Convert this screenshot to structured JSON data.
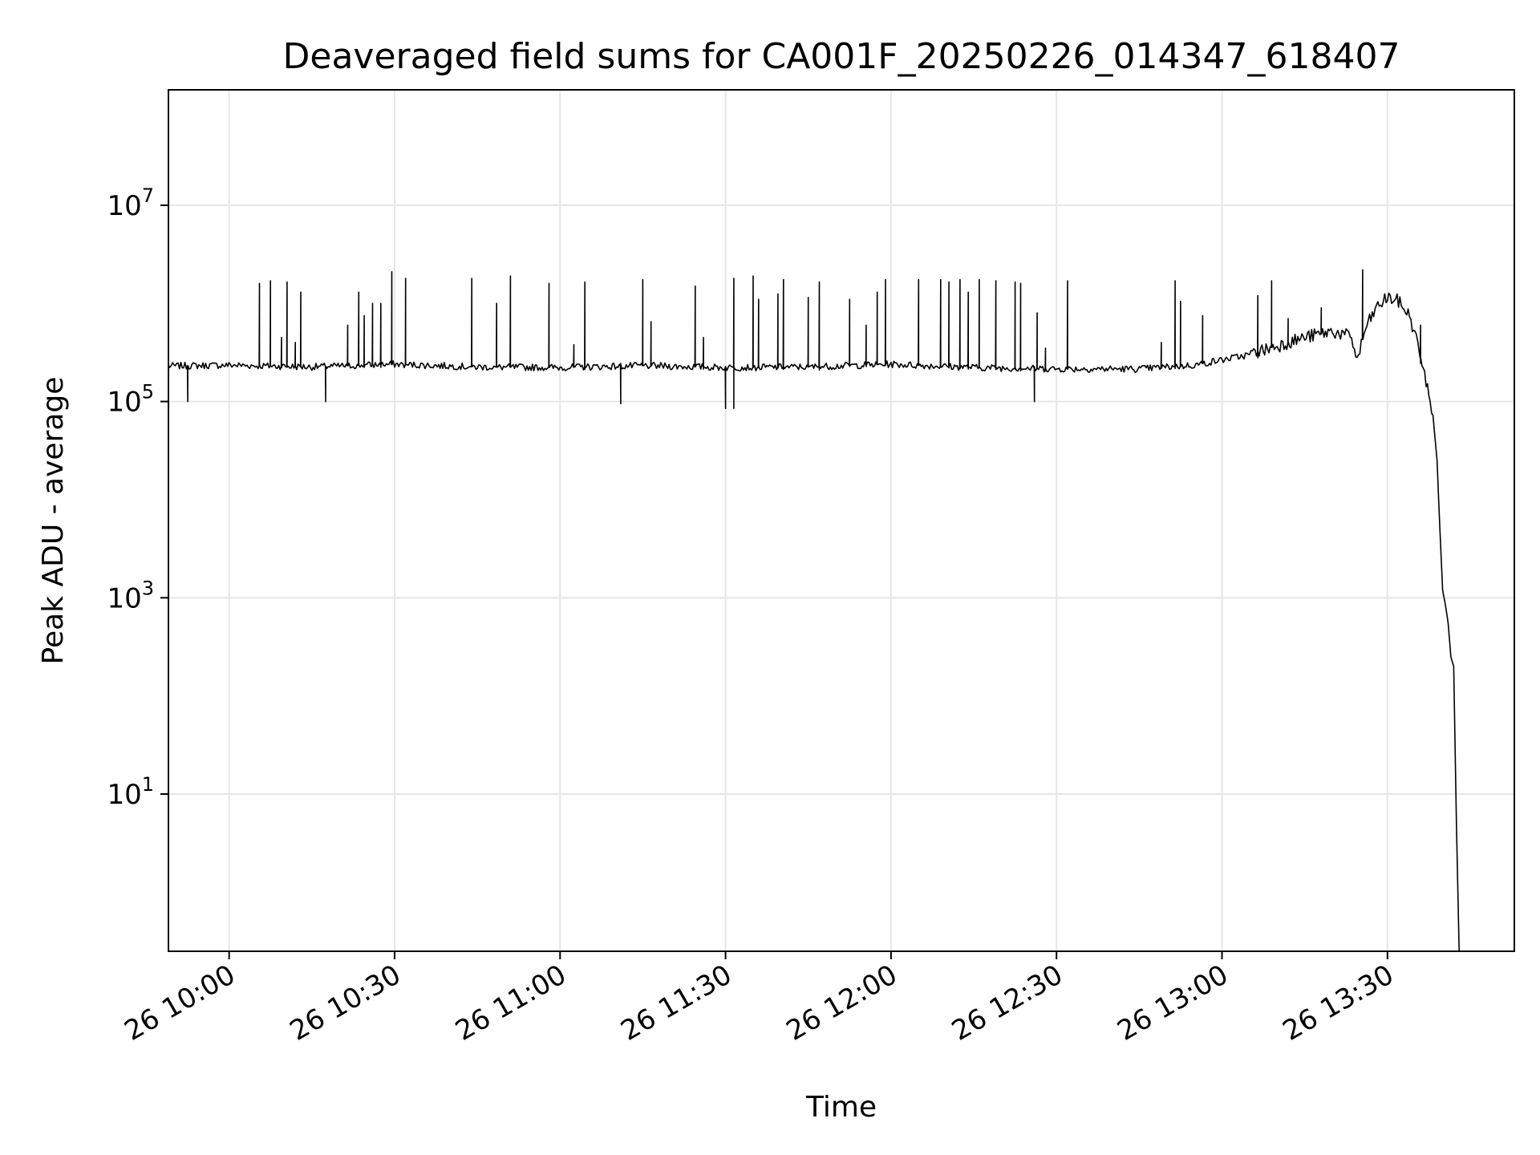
{
  "chart_data": {
    "type": "line",
    "title": "Deaveraged field sums for CA001F_20250226_014347_618407",
    "xlabel": "Time",
    "ylabel": "Peak ADU - average",
    "y_scale": "log",
    "grid": true,
    "line_color": "#000000",
    "grid_color": "#e6e6e6",
    "x_ticks": [
      "26 10:00",
      "26 10:30",
      "26 11:00",
      "26 11:30",
      "26 12:00",
      "26 12:30",
      "26 13:00",
      "26 13:30"
    ],
    "x_tick_times": [
      "2025-02-26 10:00",
      "2025-02-26 10:30",
      "2025-02-26 11:00",
      "2025-02-26 11:30",
      "2025-02-26 12:00",
      "2025-02-26 12:30",
      "2025-02-26 13:00",
      "2025-02-26 13:30"
    ],
    "y_ticks": [
      {
        "base": "10",
        "exp": "1",
        "value": 10
      },
      {
        "base": "10",
        "exp": "3",
        "value": 1000
      },
      {
        "base": "10",
        "exp": "5",
        "value": 100000
      },
      {
        "base": "10",
        "exp": "7",
        "value": 10000000
      }
    ],
    "xlim": [
      "2025-02-26 09:49",
      "2025-02-26 13:53"
    ],
    "ylim": [
      0.25,
      150000000
    ],
    "series": [
      {
        "baseline": [
          [
            "2025-02-26 09:49:00",
            230000
          ],
          [
            "2025-02-26 10:00:00",
            235000
          ],
          [
            "2025-02-26 10:15:00",
            225000
          ],
          [
            "2025-02-26 10:30:00",
            240000
          ],
          [
            "2025-02-26 10:45:00",
            225000
          ],
          [
            "2025-02-26 11:00:00",
            222000
          ],
          [
            "2025-02-26 11:15:00",
            232000
          ],
          [
            "2025-02-26 11:30:00",
            222000
          ],
          [
            "2025-02-26 11:45:00",
            225000
          ],
          [
            "2025-02-26 12:00:00",
            240000
          ],
          [
            "2025-02-26 12:15:00",
            222000
          ],
          [
            "2025-02-26 12:30:00",
            215000
          ],
          [
            "2025-02-26 12:45:00",
            215000
          ],
          [
            "2025-02-26 12:55:00",
            235000
          ],
          [
            "2025-02-26 13:05:00",
            300000
          ],
          [
            "2025-02-26 13:10:00",
            370000
          ],
          [
            "2025-02-26 13:15:00",
            450000
          ],
          [
            "2025-02-26 13:20:00",
            520000
          ],
          [
            "2025-02-26 13:23:30",
            450000
          ],
          [
            "2025-02-26 13:24:30",
            260000
          ],
          [
            "2025-02-26 13:26:00",
            550000
          ],
          [
            "2025-02-26 13:28:00",
            900000
          ],
          [
            "2025-02-26 13:30:00",
            1150000
          ],
          [
            "2025-02-26 13:32:00",
            1050000
          ],
          [
            "2025-02-26 13:34:00",
            750000
          ],
          [
            "2025-02-26 13:35:30",
            380000
          ],
          [
            "2025-02-26 13:36:30",
            200000
          ],
          [
            "2025-02-26 13:37:30",
            130000
          ],
          [
            "2025-02-26 13:38:30",
            50000
          ],
          [
            "2025-02-26 13:39:00",
            25000
          ],
          [
            "2025-02-26 13:39:30",
            5000
          ],
          [
            "2025-02-26 13:40:00",
            1200
          ],
          [
            "2025-02-26 13:40:30",
            850
          ],
          [
            "2025-02-26 13:41:00",
            550
          ],
          [
            "2025-02-26 13:41:30",
            250
          ],
          [
            "2025-02-26 13:42:00",
            200
          ],
          [
            "2025-02-26 13:42:30",
            5
          ],
          [
            "2025-02-26 13:43:00",
            0.25
          ]
        ],
        "spikes": [
          [
            "2025-02-26 09:52:30",
            100000
          ],
          [
            "2025-02-26 10:05:30",
            1600000
          ],
          [
            "2025-02-26 10:07:30",
            1700000
          ],
          [
            "2025-02-26 10:09:30",
            450000
          ],
          [
            "2025-02-26 10:10:30",
            1650000
          ],
          [
            "2025-02-26 10:12:00",
            400000
          ],
          [
            "2025-02-26 10:13:00",
            1300000
          ],
          [
            "2025-02-26 10:17:30",
            100000
          ],
          [
            "2025-02-26 10:21:30",
            600000
          ],
          [
            "2025-02-26 10:23:30",
            1300000
          ],
          [
            "2025-02-26 10:24:30",
            750000
          ],
          [
            "2025-02-26 10:26:00",
            1000000
          ],
          [
            "2025-02-26 10:27:30",
            1000000
          ],
          [
            "2025-02-26 10:29:30",
            2100000
          ],
          [
            "2025-02-26 10:32:00",
            1800000
          ],
          [
            "2025-02-26 10:44:00",
            1800000
          ],
          [
            "2025-02-26 10:48:30",
            1000000
          ],
          [
            "2025-02-26 10:51:00",
            1900000
          ],
          [
            "2025-02-26 10:58:00",
            1600000
          ],
          [
            "2025-02-26 11:02:30",
            380000
          ],
          [
            "2025-02-26 11:04:30",
            1650000
          ],
          [
            "2025-02-26 11:11:00",
            95000
          ],
          [
            "2025-02-26 11:15:00",
            1750000
          ],
          [
            "2025-02-26 11:16:30",
            650000
          ],
          [
            "2025-02-26 11:24:30",
            1500000
          ],
          [
            "2025-02-26 11:26:00",
            450000
          ],
          [
            "2025-02-26 11:30:00",
            85000
          ],
          [
            "2025-02-26 11:31:30",
            85000
          ],
          [
            "2025-02-26 11:31:30",
            1800000
          ],
          [
            "2025-02-26 11:35:00",
            1900000
          ],
          [
            "2025-02-26 11:36:00",
            1100000
          ],
          [
            "2025-02-26 11:39:30",
            1250000
          ],
          [
            "2025-02-26 11:40:30",
            1750000
          ],
          [
            "2025-02-26 11:45:00",
            1150000
          ],
          [
            "2025-02-26 11:47:00",
            1650000
          ],
          [
            "2025-02-26 11:52:30",
            1100000
          ],
          [
            "2025-02-26 11:55:30",
            600000
          ],
          [
            "2025-02-26 11:57:30",
            1300000
          ],
          [
            "2025-02-26 11:59:00",
            1750000
          ],
          [
            "2025-02-26 12:05:00",
            1750000
          ],
          [
            "2025-02-26 12:09:00",
            1750000
          ],
          [
            "2025-02-26 12:10:30",
            1650000
          ],
          [
            "2025-02-26 12:12:30",
            1750000
          ],
          [
            "2025-02-26 12:14:00",
            1300000
          ],
          [
            "2025-02-26 12:16:00",
            1750000
          ],
          [
            "2025-02-26 12:19:00",
            1700000
          ],
          [
            "2025-02-26 12:22:30",
            1650000
          ],
          [
            "2025-02-26 12:23:30",
            1600000
          ],
          [
            "2025-02-26 12:26:00",
            100000
          ],
          [
            "2025-02-26 12:26:30",
            800000
          ],
          [
            "2025-02-26 12:28:00",
            350000
          ],
          [
            "2025-02-26 12:32:00",
            1700000
          ],
          [
            "2025-02-26 12:49:00",
            400000
          ],
          [
            "2025-02-26 12:51:30",
            1700000
          ],
          [
            "2025-02-26 12:52:30",
            1050000
          ],
          [
            "2025-02-26 12:56:30",
            750000
          ],
          [
            "2025-02-26 13:06:30",
            1200000
          ],
          [
            "2025-02-26 13:09:00",
            1700000
          ],
          [
            "2025-02-26 13:12:00",
            700000
          ],
          [
            "2025-02-26 13:18:00",
            900000
          ],
          [
            "2025-02-26 13:25:30",
            2200000
          ],
          [
            "2025-02-26 13:36:00",
            600000
          ]
        ]
      }
    ]
  }
}
